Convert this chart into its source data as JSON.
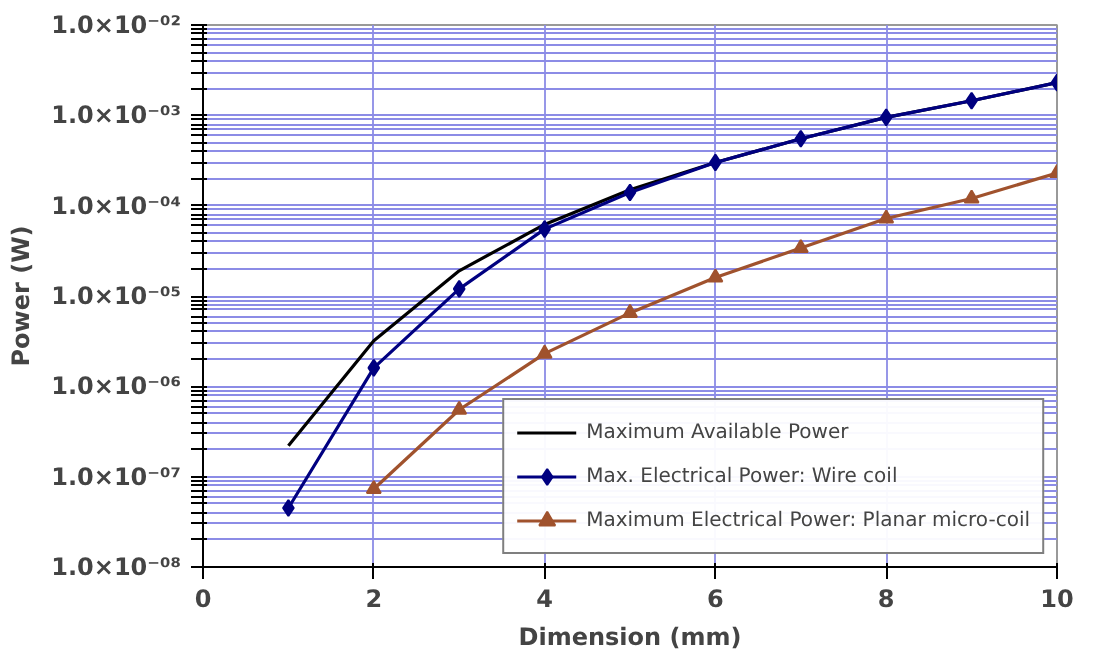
{
  "chart_data": {
    "type": "line",
    "xlabel": "Dimension (mm)",
    "ylabel": "Power (W)",
    "log": "y",
    "grid": true,
    "legend": "bottom right",
    "x": [
      1,
      2,
      3,
      4,
      5,
      6,
      7,
      8,
      9,
      10
    ],
    "xlim": [
      0,
      10
    ],
    "xticks": [
      0,
      2,
      4,
      6,
      8,
      10
    ],
    "ylim": [
      1e-08,
      0.01
    ],
    "yticks": [
      {
        "value": 1e-08,
        "label": "1.0×10⁻⁰⁸"
      },
      {
        "value": 1e-07,
        "label": "1.0×10⁻⁰⁷"
      },
      {
        "value": 1e-06,
        "label": "1.0×10⁻⁰⁶"
      },
      {
        "value": 1e-05,
        "label": "1.0×10⁻⁰⁵"
      },
      {
        "value": 0.0001,
        "label": "1.0×10⁻⁰⁴"
      },
      {
        "value": 0.001,
        "label": "1.0×10⁻⁰³"
      },
      {
        "value": 0.01,
        "label": "1.0×10⁻⁰²"
      },
      {
        "value": 2e-08,
        "label": null
      },
      {
        "value": 3e-08,
        "label": null
      },
      {
        "value": 4e-08,
        "label": null
      },
      {
        "value": 5e-08,
        "label": null
      },
      {
        "value": 6e-08,
        "label": null
      },
      {
        "value": 7e-08,
        "label": null
      },
      {
        "value": 8e-08,
        "label": null
      },
      {
        "value": 9e-08,
        "label": null
      },
      {
        "value": 2e-07,
        "label": null
      },
      {
        "value": 3e-07,
        "label": null
      },
      {
        "value": 4e-07,
        "label": null
      },
      {
        "value": 5e-07,
        "label": null
      },
      {
        "value": 6e-07,
        "label": null
      },
      {
        "value": 7e-07,
        "label": null
      },
      {
        "value": 8e-07,
        "label": null
      },
      {
        "value": 9e-07,
        "label": null
      },
      {
        "value": 2e-06,
        "label": null
      },
      {
        "value": 3e-06,
        "label": null
      },
      {
        "value": 4e-06,
        "label": null
      },
      {
        "value": 5e-06,
        "label": null
      },
      {
        "value": 6e-06,
        "label": null
      },
      {
        "value": 7e-06,
        "label": null
      },
      {
        "value": 8e-06,
        "label": null
      },
      {
        "value": 9e-06,
        "label": null
      },
      {
        "value": 2e-05,
        "label": null
      },
      {
        "value": 3e-05,
        "label": null
      },
      {
        "value": 4e-05,
        "label": null
      },
      {
        "value": 5e-05,
        "label": null
      },
      {
        "value": 6e-05,
        "label": null
      },
      {
        "value": 7e-05,
        "label": null
      },
      {
        "value": 8e-05,
        "label": null
      },
      {
        "value": 9e-05,
        "label": null
      },
      {
        "value": 0.0002,
        "label": null
      },
      {
        "value": 0.0003,
        "label": null
      },
      {
        "value": 0.0004,
        "label": null
      },
      {
        "value": 0.0005,
        "label": null
      },
      {
        "value": 0.0006,
        "label": null
      },
      {
        "value": 0.0007,
        "label": null
      },
      {
        "value": 0.0008,
        "label": null
      },
      {
        "value": 0.0009,
        "label": null
      },
      {
        "value": 0.002,
        "label": null
      },
      {
        "value": 0.003,
        "label": null
      },
      {
        "value": 0.004,
        "label": null
      },
      {
        "value": 0.005,
        "label": null
      },
      {
        "value": 0.006,
        "label": null
      },
      {
        "value": 0.007,
        "label": null
      },
      {
        "value": 0.008,
        "label": null
      },
      {
        "value": 0.009,
        "label": null
      }
    ],
    "series": [
      {
        "name": "Maximum Available Power",
        "color": "#000000",
        "marker": "none",
        "values": [
          2.2e-07,
          3.2e-06,
          1.9e-05,
          6.2e-05,
          0.00015,
          0.0003,
          0.00055,
          0.00095,
          0.00145,
          0.0023
        ]
      },
      {
        "name": "Max. Electrical Power: Wire coil",
        "color": "#000080",
        "marker": "diamond",
        "values": [
          4.5e-08,
          1.6e-06,
          1.2e-05,
          5.5e-05,
          0.00014,
          0.0003,
          0.00055,
          0.00095,
          0.00145,
          0.0023
        ]
      },
      {
        "name": "Maximum Electrical Power: Planar micro-coil",
        "color": "#a0522d",
        "marker": "triangle",
        "values": [
          null,
          7.3e-08,
          5.5e-07,
          2.3e-06,
          6.5e-06,
          1.6e-05,
          3.4e-05,
          7.2e-05,
          0.00012,
          0.00023
        ]
      }
    ]
  }
}
